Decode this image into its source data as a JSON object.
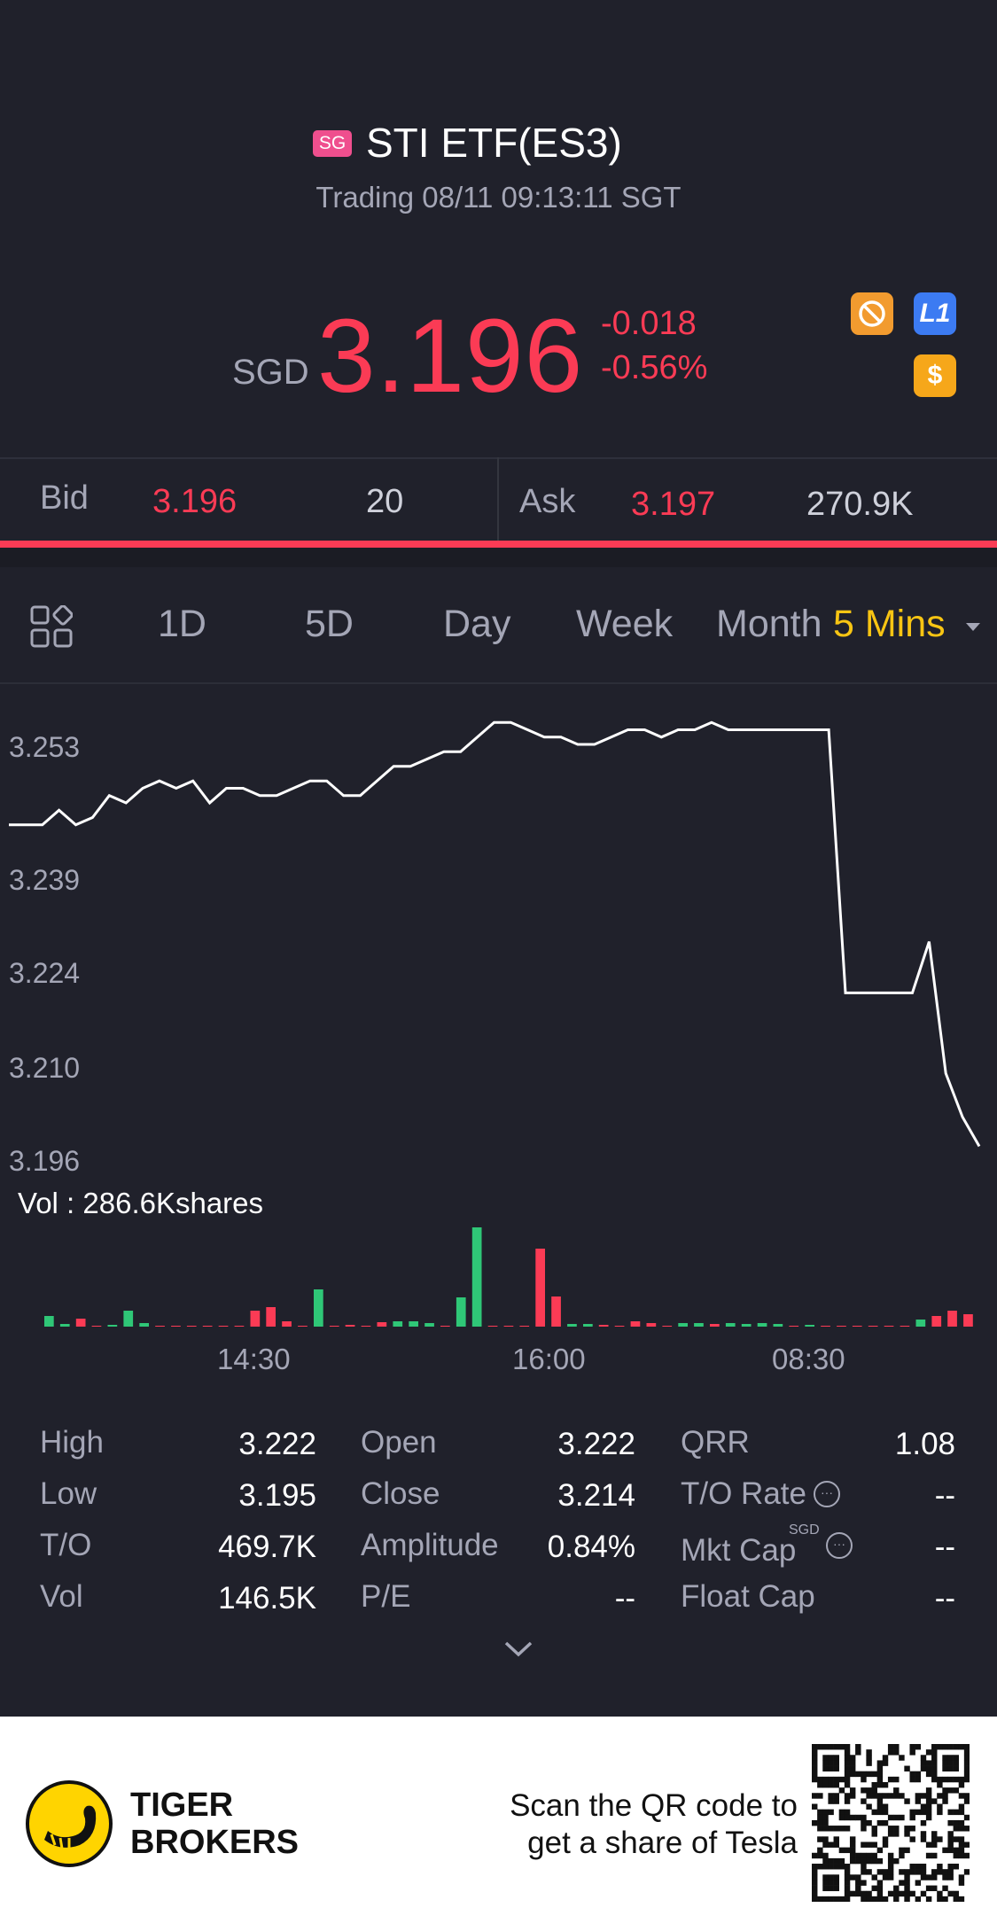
{
  "header": {
    "market_badge": "SG",
    "title": "STI ETF(ES3)",
    "status": "Trading 08/11 09:13:11 SGT",
    "currency": "SGD",
    "price": "3.196",
    "change": "-0.018",
    "change_pct": "-0.56%",
    "level_badge": "L1",
    "dollar_badge": "$"
  },
  "bidask": {
    "bid_label": "Bid",
    "bid_price": "3.196",
    "bid_size": "20",
    "ask_label": "Ask",
    "ask_price": "3.197",
    "ask_size": "270.9K"
  },
  "tabs": [
    "1D",
    "5D",
    "Day",
    "Week",
    "Month"
  ],
  "interval": "5 Mins",
  "colors": {
    "up": "#fb3b55",
    "down": "#2fc777",
    "accent": "#f8c513"
  },
  "chart_data": {
    "type": "line",
    "y_ticks": [
      "3.253",
      "3.239",
      "3.224",
      "3.210",
      "3.196"
    ],
    "ylim": [
      3.196,
      3.253
    ],
    "x_ticks": [
      "14:30",
      "16:00",
      "08:30"
    ],
    "volume_label": "Vol  : 286.6Kshares",
    "price_series": [
      3.242,
      3.242,
      3.242,
      3.244,
      3.242,
      3.243,
      3.246,
      3.245,
      3.247,
      3.248,
      3.247,
      3.248,
      3.245,
      3.247,
      3.247,
      3.246,
      3.246,
      3.247,
      3.248,
      3.248,
      3.246,
      3.246,
      3.248,
      3.25,
      3.25,
      3.251,
      3.252,
      3.252,
      3.254,
      3.256,
      3.256,
      3.255,
      3.254,
      3.254,
      3.253,
      3.253,
      3.254,
      3.255,
      3.255,
      3.254,
      3.255,
      3.255,
      3.256,
      3.255,
      3.255,
      3.255,
      3.255,
      3.255,
      3.255,
      3.255,
      3.219,
      3.219,
      3.219,
      3.219,
      3.219,
      3.226,
      3.208,
      3.202,
      3.198
    ],
    "volume_series": [
      {
        "v": 12,
        "d": "down"
      },
      {
        "v": 3,
        "d": "down"
      },
      {
        "v": 9,
        "d": "up"
      },
      {
        "v": 0,
        "d": "up"
      },
      {
        "v": 2,
        "d": "down"
      },
      {
        "v": 18,
        "d": "down"
      },
      {
        "v": 4,
        "d": "down"
      },
      {
        "v": 0,
        "d": "up"
      },
      {
        "v": 0,
        "d": "up"
      },
      {
        "v": 0,
        "d": "up"
      },
      {
        "v": 0,
        "d": "up"
      },
      {
        "v": 0,
        "d": "up"
      },
      {
        "v": 0,
        "d": "up"
      },
      {
        "v": 18,
        "d": "up"
      },
      {
        "v": 22,
        "d": "up"
      },
      {
        "v": 6,
        "d": "up"
      },
      {
        "v": 0,
        "d": "up"
      },
      {
        "v": 42,
        "d": "down"
      },
      {
        "v": 0,
        "d": "up"
      },
      {
        "v": 2,
        "d": "up"
      },
      {
        "v": 0,
        "d": "up"
      },
      {
        "v": 5,
        "d": "up"
      },
      {
        "v": 6,
        "d": "down"
      },
      {
        "v": 6,
        "d": "down"
      },
      {
        "v": 4,
        "d": "down"
      },
      {
        "v": 0,
        "d": "up"
      },
      {
        "v": 33,
        "d": "down"
      },
      {
        "v": 112,
        "d": "down"
      },
      {
        "v": 0,
        "d": "up"
      },
      {
        "v": 0,
        "d": "up"
      },
      {
        "v": 0,
        "d": "up"
      },
      {
        "v": 88,
        "d": "up"
      },
      {
        "v": 34,
        "d": "up"
      },
      {
        "v": 3,
        "d": "down"
      },
      {
        "v": 3,
        "d": "down"
      },
      {
        "v": 2,
        "d": "up"
      },
      {
        "v": 0,
        "d": "up"
      },
      {
        "v": 6,
        "d": "up"
      },
      {
        "v": 4,
        "d": "up"
      },
      {
        "v": 0,
        "d": "up"
      },
      {
        "v": 4,
        "d": "down"
      },
      {
        "v": 4,
        "d": "down"
      },
      {
        "v": 3,
        "d": "up"
      },
      {
        "v": 4,
        "d": "down"
      },
      {
        "v": 3,
        "d": "down"
      },
      {
        "v": 4,
        "d": "down"
      },
      {
        "v": 3,
        "d": "down"
      },
      {
        "v": 0,
        "d": "up"
      },
      {
        "v": 2,
        "d": "down"
      },
      {
        "v": 0,
        "d": "up"
      },
      {
        "v": 0,
        "d": "up"
      },
      {
        "v": 0,
        "d": "up"
      },
      {
        "v": 0,
        "d": "up"
      },
      {
        "v": 0,
        "d": "up"
      },
      {
        "v": 0,
        "d": "up"
      },
      {
        "v": 8,
        "d": "down"
      },
      {
        "v": 12,
        "d": "up"
      },
      {
        "v": 18,
        "d": "up"
      },
      {
        "v": 14,
        "d": "up"
      }
    ]
  },
  "stats": {
    "col1": [
      {
        "label": "High",
        "value": "3.222"
      },
      {
        "label": "Low",
        "value": "3.195"
      },
      {
        "label": "T/O",
        "value": "469.7K"
      },
      {
        "label": "Vol",
        "value": "146.5K"
      }
    ],
    "col2": [
      {
        "label": "Open",
        "value": "3.222"
      },
      {
        "label": "Close",
        "value": "3.214"
      },
      {
        "label": "Amplitude",
        "value": "0.84%"
      },
      {
        "label": "P/E",
        "value": "--"
      }
    ],
    "col3": [
      {
        "label": "QRR",
        "value": "1.08"
      },
      {
        "label": "T/O Rate",
        "value": "--"
      },
      {
        "label": "Mkt Cap",
        "value": "--"
      },
      {
        "label": "Float Cap",
        "value": "--"
      }
    ],
    "mkt_cap_currency": "SGD"
  },
  "footer": {
    "brand_line1": "TIGER",
    "brand_line2": "BROKERS",
    "promo_line1": "Scan the QR code to",
    "promo_line2": "get a share of Tesla"
  }
}
